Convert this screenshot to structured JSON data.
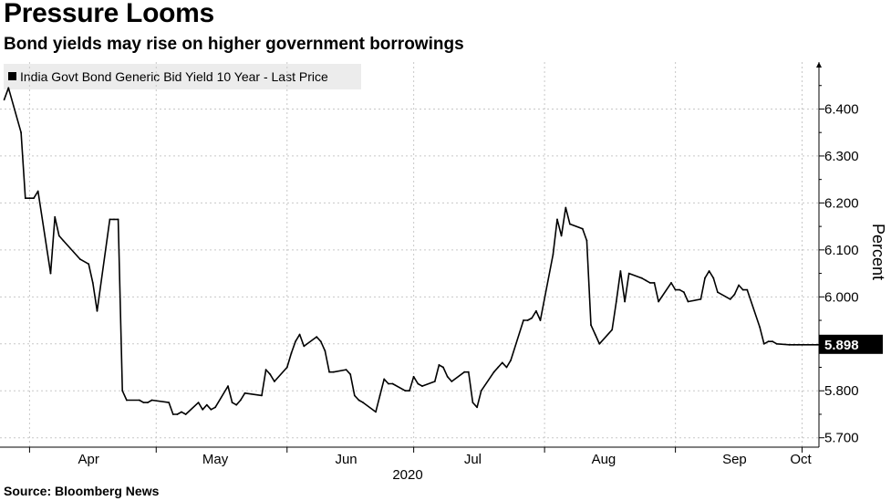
{
  "title": "Pressure Looms",
  "subtitle": "Bond yields may rise on higher government borrowings",
  "source": "Source: Bloomberg News",
  "chart_data": {
    "type": "line",
    "series": [
      {
        "name": "India Govt Bond Generic Bid Yield 10 Year - Last Price",
        "color": "#000000",
        "x": [
          "2020-03-26",
          "2020-03-27",
          "2020-03-30",
          "2020-03-31",
          "2020-04-01",
          "2020-04-02",
          "2020-04-03",
          "2020-04-06",
          "2020-04-07",
          "2020-04-08",
          "2020-04-09",
          "2020-04-13",
          "2020-04-15",
          "2020-04-16",
          "2020-04-17",
          "2020-04-20",
          "2020-04-21",
          "2020-04-22",
          "2020-04-23",
          "2020-04-24",
          "2020-04-27",
          "2020-04-28",
          "2020-04-29",
          "2020-04-30",
          "2020-05-04",
          "2020-05-05",
          "2020-05-06",
          "2020-05-07",
          "2020-05-08",
          "2020-05-11",
          "2020-05-12",
          "2020-05-13",
          "2020-05-14",
          "2020-05-15",
          "2020-05-18",
          "2020-05-19",
          "2020-05-20",
          "2020-05-21",
          "2020-05-22",
          "2020-05-26",
          "2020-05-27",
          "2020-05-28",
          "2020-05-29",
          "2020-06-01",
          "2020-06-02",
          "2020-06-03",
          "2020-06-04",
          "2020-06-05",
          "2020-06-08",
          "2020-06-09",
          "2020-06-10",
          "2020-06-11",
          "2020-06-12",
          "2020-06-15",
          "2020-06-16",
          "2020-06-17",
          "2020-06-18",
          "2020-06-19",
          "2020-06-22",
          "2020-06-23",
          "2020-06-24",
          "2020-06-25",
          "2020-06-26",
          "2020-06-29",
          "2020-06-30",
          "2020-07-01",
          "2020-07-02",
          "2020-07-03",
          "2020-07-06",
          "2020-07-07",
          "2020-07-08",
          "2020-07-09",
          "2020-07-10",
          "2020-07-13",
          "2020-07-14",
          "2020-07-15",
          "2020-07-16",
          "2020-07-17",
          "2020-07-20",
          "2020-07-21",
          "2020-07-22",
          "2020-07-23",
          "2020-07-24",
          "2020-07-27",
          "2020-07-28",
          "2020-07-29",
          "2020-07-30",
          "2020-07-31",
          "2020-08-03",
          "2020-08-04",
          "2020-08-05",
          "2020-08-06",
          "2020-08-07",
          "2020-08-10",
          "2020-08-11",
          "2020-08-12",
          "2020-08-13",
          "2020-08-14",
          "2020-08-17",
          "2020-08-18",
          "2020-08-19",
          "2020-08-20",
          "2020-08-21",
          "2020-08-24",
          "2020-08-25",
          "2020-08-26",
          "2020-08-27",
          "2020-08-28",
          "2020-08-31",
          "2020-09-01",
          "2020-09-02",
          "2020-09-03",
          "2020-09-04",
          "2020-09-07",
          "2020-09-08",
          "2020-09-09",
          "2020-09-10",
          "2020-09-11",
          "2020-09-14",
          "2020-09-15",
          "2020-09-16",
          "2020-09-17",
          "2020-09-18",
          "2020-09-21",
          "2020-09-22",
          "2020-09-23",
          "2020-09-24",
          "2020-09-25",
          "2020-09-28",
          "2020-09-29",
          "2020-09-30",
          "2020-10-01",
          "2020-10-05"
        ],
        "y": [
          6.42,
          6.445,
          6.35,
          6.21,
          6.21,
          6.21,
          6.225,
          6.05,
          6.17,
          6.13,
          6.12,
          6.08,
          6.07,
          6.03,
          5.97,
          6.165,
          6.165,
          6.165,
          5.8,
          5.78,
          5.78,
          5.775,
          5.775,
          5.78,
          5.775,
          5.75,
          5.75,
          5.755,
          5.75,
          5.775,
          5.76,
          5.77,
          5.76,
          5.765,
          5.81,
          5.775,
          5.77,
          5.78,
          5.795,
          5.79,
          5.845,
          5.835,
          5.82,
          5.85,
          5.88,
          5.905,
          5.92,
          5.895,
          5.915,
          5.905,
          5.885,
          5.84,
          5.84,
          5.845,
          5.835,
          5.79,
          5.78,
          5.775,
          5.755,
          5.79,
          5.825,
          5.815,
          5.815,
          5.8,
          5.8,
          5.83,
          5.815,
          5.81,
          5.82,
          5.855,
          5.85,
          5.83,
          5.82,
          5.84,
          5.84,
          5.775,
          5.765,
          5.8,
          5.84,
          5.85,
          5.86,
          5.85,
          5.865,
          5.95,
          5.95,
          5.955,
          5.97,
          5.95,
          6.09,
          6.165,
          6.13,
          6.19,
          6.155,
          6.145,
          6.12,
          5.94,
          5.92,
          5.9,
          5.93,
          5.99,
          6.055,
          5.99,
          6.05,
          6.04,
          6.035,
          6.03,
          6.03,
          5.99,
          6.03,
          6.015,
          6.015,
          6.01,
          5.99,
          5.995,
          6.04,
          6.055,
          6.04,
          6.01,
          5.995,
          6.005,
          6.025,
          6.015,
          6.015,
          5.935,
          5.9,
          5.905,
          5.905,
          5.9,
          5.898,
          5.898,
          5.898,
          5.898,
          5.898
        ],
        "last_value_label": "5.898"
      }
    ],
    "x_tick_labels": [
      "Apr",
      "May",
      "Jun",
      "Jul",
      "Aug",
      "Sep",
      "Oct"
    ],
    "x_tick_dates": [
      "2020-04-15",
      "2020-05-15",
      "2020-06-15",
      "2020-07-15",
      "2020-08-15",
      "2020-09-15",
      "2020-10-15"
    ],
    "x_year_label": "2020",
    "xlim": [
      "2020-03-25",
      "2020-10-05"
    ],
    "y_ticks": [
      5.7,
      5.8,
      5.9,
      6.0,
      6.1,
      6.2,
      6.3,
      6.4
    ],
    "y_tick_labels": [
      "5.700",
      "5.800",
      "",
      "6.000",
      "6.100",
      "6.200",
      "6.300",
      "6.400"
    ],
    "ylim": [
      5.68,
      6.5
    ],
    "ylabel": "Percent",
    "grid": true,
    "legend_position": "top-left",
    "y_axis_position": "right"
  }
}
